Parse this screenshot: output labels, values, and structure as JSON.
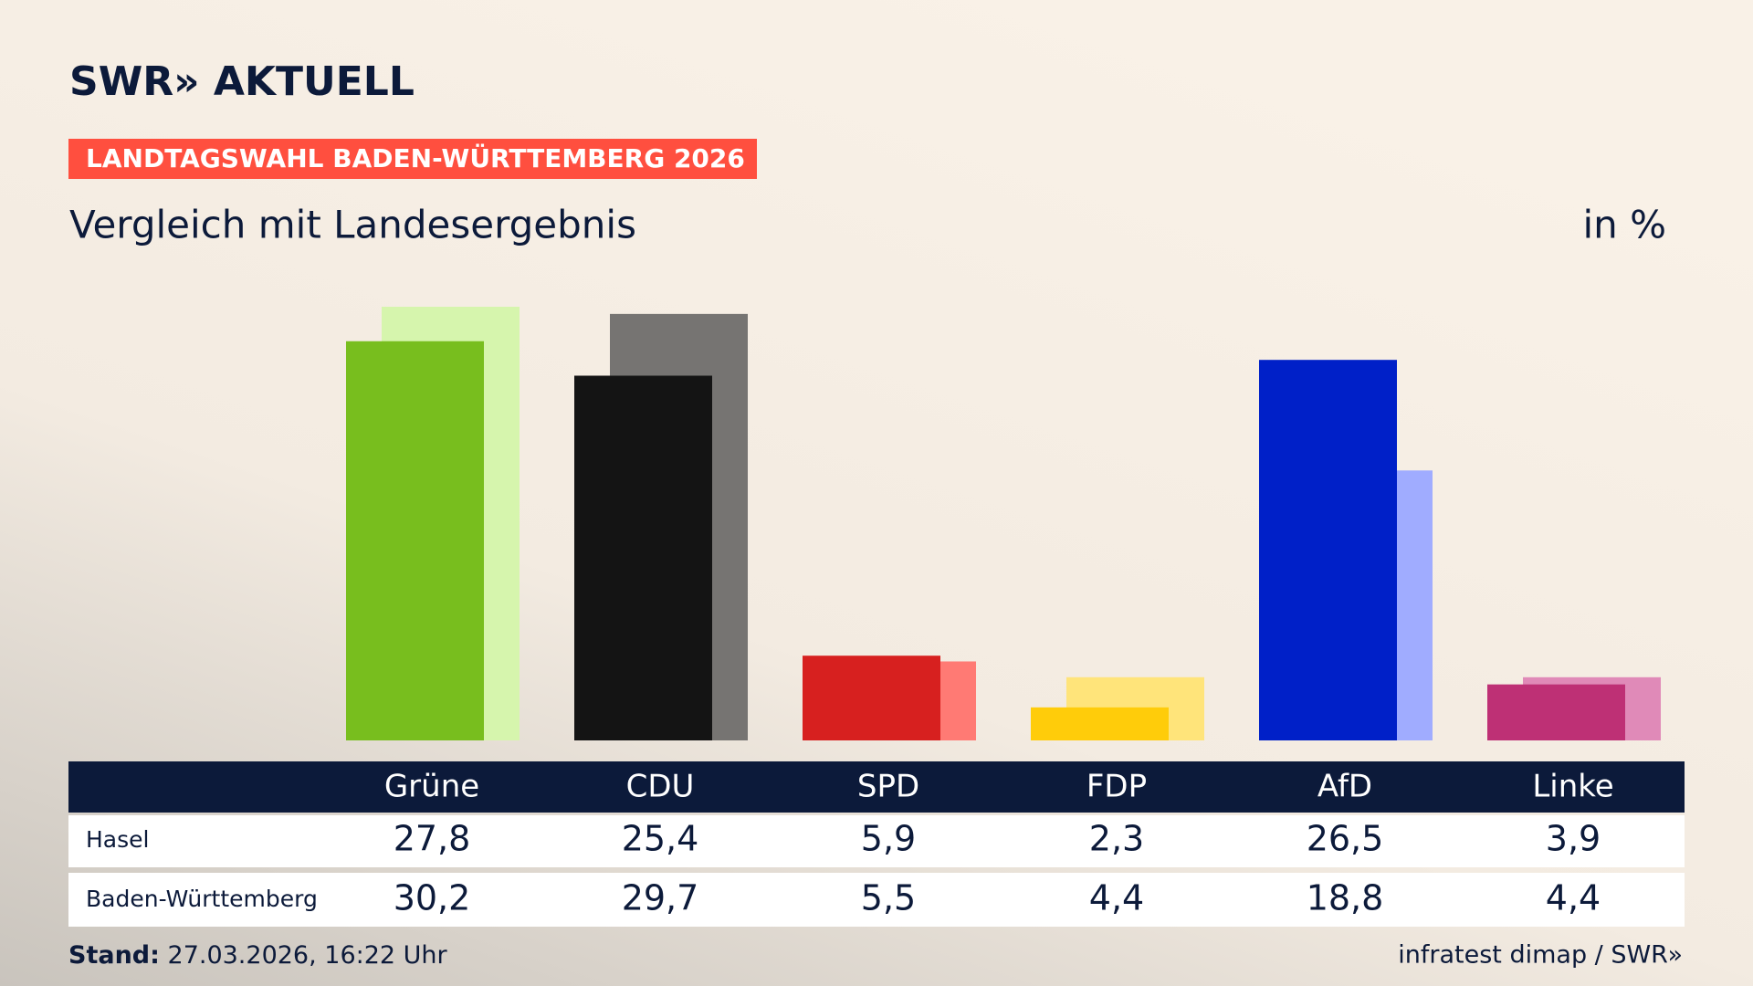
{
  "brand": "SWR» AKTUELL",
  "banner": "LANDTAGSWAHL BADEN-WÜRTTEMBERG 2026",
  "chart_data": {
    "type": "bar",
    "title": "Vergleich mit Landesergebnis",
    "unit": "in %",
    "categories": [
      "Grüne",
      "CDU",
      "SPD",
      "FDP",
      "AfD",
      "Linke"
    ],
    "series": [
      {
        "name": "Hasel",
        "colors": [
          "#78be1e",
          "#141414",
          "#d7201f",
          "#ffcc0a",
          "#0020c8",
          "#be3075"
        ],
        "values": [
          27.8,
          25.4,
          5.9,
          2.3,
          26.5,
          3.9
        ],
        "value_labels": [
          "27,8",
          "25,4",
          "5,9",
          "2,3",
          "26,5",
          "3,9"
        ]
      },
      {
        "name": "Baden-Württemberg",
        "colors": [
          "#d6f5ad",
          "#767472",
          "#ff7a74",
          "#ffe47a",
          "#a0acff",
          "#e08ab8"
        ],
        "values": [
          30.2,
          29.7,
          5.5,
          4.4,
          18.8,
          4.4
        ],
        "value_labels": [
          "30,2",
          "29,7",
          "5,5",
          "4,4",
          "18,8",
          "4,4"
        ]
      }
    ]
  },
  "footer": {
    "stand_label": "Stand:",
    "stand": "27.03.2026, 16:22 Uhr",
    "source": "infratest dimap / SWR»"
  }
}
